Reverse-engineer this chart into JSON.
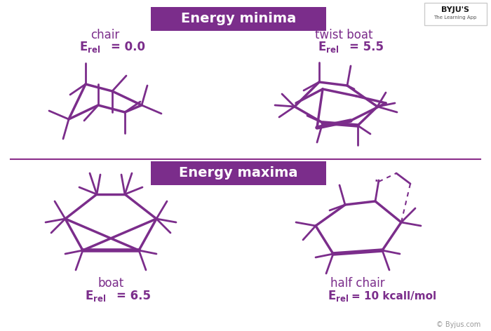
{
  "bg_color": "#ffffff",
  "purple": "#7B2D8B",
  "box_color": "#7B2D8B",
  "title_minima": "Energy minima",
  "title_maxima": "Energy maxima",
  "label_chair": "chair",
  "label_twist": "twist boat",
  "label_boat": "boat",
  "label_half": "half chair",
  "lw_ring": 2.5,
  "lw_stub": 2.0,
  "lw_thick": 4.0
}
